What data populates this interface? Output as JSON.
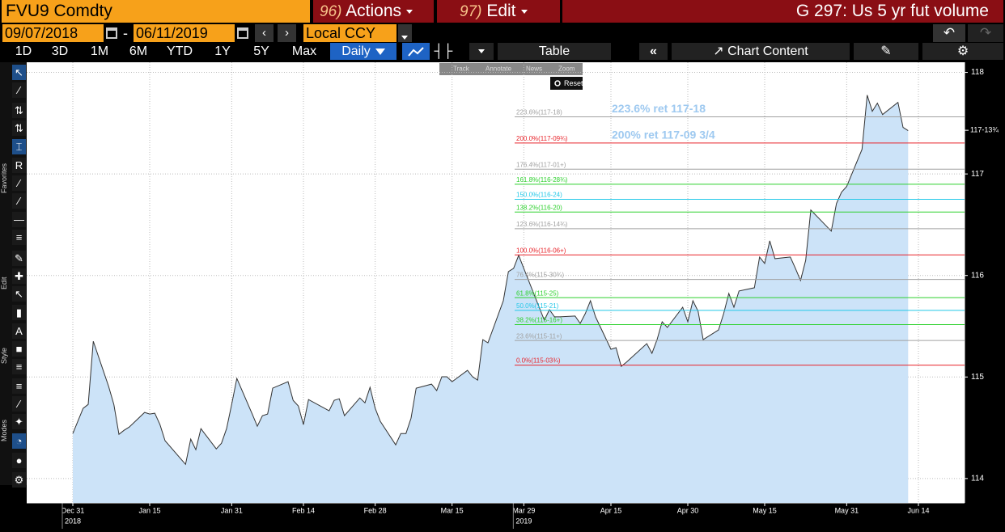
{
  "header": {
    "ticker": "FVU9 Comdty",
    "actions_num": "96)",
    "actions": "Actions",
    "edit_num": "97)",
    "edit": "Edit",
    "title": "G 297: Us 5 yr fut volume"
  },
  "controls": {
    "start_date": "09/07/2018",
    "dash": "-",
    "end_date": "06/11/2019",
    "currency": "Local CCY",
    "periods": [
      "1D",
      "3D",
      "1M",
      "6M",
      "YTD",
      "1Y",
      "5Y",
      "Max"
    ],
    "frequency": "Daily",
    "table": "Table",
    "chart_content": "Chart Content"
  },
  "sidebar": [
    "Favorites",
    "Edit",
    "Style",
    "Modes"
  ],
  "chart_tools": [
    "Track",
    "Annotate",
    "News",
    "Zoom"
  ],
  "reset": "Reset",
  "chart_data": {
    "type": "area",
    "color": "#333333",
    "fill": "#cce3f8",
    "grid": true,
    "x": [
      "2018-12-31",
      "2019-01-02",
      "2019-01-03",
      "2019-01-04",
      "2019-01-07",
      "2019-01-08",
      "2019-01-09",
      "2019-01-10",
      "2019-01-11",
      "2019-01-14",
      "2019-01-15",
      "2019-01-16",
      "2019-01-17",
      "2019-01-18",
      "2019-01-22",
      "2019-01-23",
      "2019-01-24",
      "2019-01-25",
      "2019-01-28",
      "2019-01-29",
      "2019-01-30",
      "2019-01-31",
      "2019-02-01",
      "2019-02-04",
      "2019-02-05",
      "2019-02-06",
      "2019-02-07",
      "2019-02-08",
      "2019-02-11",
      "2019-02-12",
      "2019-02-13",
      "2019-02-14",
      "2019-02-15",
      "2019-02-19",
      "2019-02-20",
      "2019-02-21",
      "2019-02-22",
      "2019-02-25",
      "2019-02-26",
      "2019-02-27",
      "2019-02-28",
      "2019-03-01",
      "2019-03-04",
      "2019-03-05",
      "2019-03-06",
      "2019-03-07",
      "2019-03-08",
      "2019-03-11",
      "2019-03-12",
      "2019-03-13",
      "2019-03-14",
      "2019-03-15",
      "2019-03-18",
      "2019-03-19",
      "2019-03-20",
      "2019-03-21",
      "2019-03-22",
      "2019-03-25",
      "2019-03-26",
      "2019-03-27",
      "2019-03-28",
      "2019-03-29",
      "2019-04-01",
      "2019-04-02",
      "2019-04-03",
      "2019-04-04",
      "2019-04-05",
      "2019-04-08",
      "2019-04-09",
      "2019-04-10",
      "2019-04-11",
      "2019-04-12",
      "2019-04-15",
      "2019-04-16",
      "2019-04-17",
      "2019-04-18",
      "2019-04-22",
      "2019-04-23",
      "2019-04-24",
      "2019-04-25",
      "2019-04-26",
      "2019-04-29",
      "2019-04-30",
      "2019-05-01",
      "2019-05-02",
      "2019-05-03",
      "2019-05-06",
      "2019-05-07",
      "2019-05-08",
      "2019-05-09",
      "2019-05-10",
      "2019-05-13",
      "2019-05-14",
      "2019-05-15",
      "2019-05-16",
      "2019-05-17",
      "2019-05-20",
      "2019-05-21",
      "2019-05-22",
      "2019-05-23",
      "2019-05-24",
      "2019-05-28",
      "2019-05-29",
      "2019-05-30",
      "2019-05-31",
      "2019-06-03",
      "2019-06-04",
      "2019-06-05",
      "2019-06-06",
      "2019-06-07",
      "2019-06-10",
      "2019-06-11",
      "2019-06-12"
    ],
    "values": [
      114.443,
      114.691,
      114.73,
      115.352,
      114.906,
      114.73,
      114.435,
      114.475,
      114.507,
      114.651,
      114.635,
      114.643,
      114.531,
      114.372,
      114.14,
      114.388,
      114.284,
      114.491,
      114.292,
      114.348,
      114.491,
      114.73,
      114.986,
      114.635,
      114.515,
      114.619,
      114.635,
      114.89,
      114.954,
      114.77,
      114.715,
      114.531,
      114.778,
      114.667,
      114.77,
      114.786,
      114.619,
      114.794,
      114.746,
      114.898,
      114.691,
      114.563,
      114.332,
      114.443,
      114.443,
      114.595,
      114.89,
      114.93,
      114.866,
      115.002,
      115.002,
      114.954,
      115.065,
      115.002,
      114.97,
      115.368,
      115.337,
      115.751,
      116.038,
      116.07,
      116.198,
      116.07,
      115.687,
      115.56,
      115.663,
      115.592,
      115.592,
      115.6,
      115.528,
      115.624,
      115.751,
      115.592,
      115.273,
      115.289,
      115.105,
      115.145,
      115.329,
      115.233,
      115.368,
      115.544,
      115.488,
      115.687,
      115.544,
      115.751,
      115.648,
      115.368,
      115.464,
      115.624,
      115.823,
      115.687,
      115.847,
      115.879,
      116.182,
      116.118,
      116.341,
      116.166,
      116.182,
      116.07,
      115.951,
      116.15,
      116.644,
      116.437,
      116.708,
      116.82,
      116.876,
      117.242,
      117.777,
      117.617,
      117.697,
      117.585,
      117.705,
      117.458,
      117.426
    ],
    "xlim": [
      "2018-12-22",
      "2019-06-23"
    ],
    "xticks": [
      {
        "value": "2018-12-31",
        "label": "Dec 31"
      },
      {
        "value": "2019-01-15",
        "label": "Jan 15"
      },
      {
        "value": "2019-01-31",
        "label": "Jan 31"
      },
      {
        "value": "2019-02-14",
        "label": "Feb 14"
      },
      {
        "value": "2019-02-28",
        "label": "Feb 28"
      },
      {
        "value": "2019-03-15",
        "label": "Mar 15"
      },
      {
        "value": "2019-03-29",
        "label": "Mar 29"
      },
      {
        "value": "2019-04-15",
        "label": "Apr 15"
      },
      {
        "value": "2019-04-30",
        "label": "Apr 30"
      },
      {
        "value": "2019-05-15",
        "label": "May 15"
      },
      {
        "value": "2019-05-31",
        "label": "May 31"
      },
      {
        "value": "2019-06-14",
        "label": "Jun 14"
      }
    ],
    "year_labels": [
      {
        "value": "2018-12-31",
        "label": "2018"
      },
      {
        "value": "2019-03-29",
        "label": "2019"
      }
    ],
    "ylim": [
      113.76,
      118.1
    ],
    "yticks": [
      114,
      115,
      116,
      117,
      118
    ],
    "last_price": {
      "value": 117.43,
      "label": "117-13¾"
    },
    "fib_levels": [
      {
        "label": "223.6%(117-18)",
        "value": 117.5625,
        "color": "#a0a0a0"
      },
      {
        "label": "200.0%(117-09¾)",
        "value": 117.3047,
        "color": "#e8232a"
      },
      {
        "label": "176.4%(117-01+)",
        "value": 117.0469,
        "color": "#a0a0a0"
      },
      {
        "label": "161.8%(116-28¾)",
        "value": 116.8984,
        "color": "#2ed12e"
      },
      {
        "label": "150.0%(116-24)",
        "value": 116.75,
        "color": "#22c8e8"
      },
      {
        "label": "138.2%(116-20)",
        "value": 116.625,
        "color": "#2ed12e"
      },
      {
        "label": "123.6%(116-14¾)",
        "value": 116.4609,
        "color": "#a0a0a0"
      },
      {
        "label": "100.0%(116-06+)",
        "value": 116.2031,
        "color": "#e8232a"
      },
      {
        "label": "76.4%(115-30¾)",
        "value": 115.9609,
        "color": "#a0a0a0"
      },
      {
        "label": "61.8%(115-25)",
        "value": 115.7813,
        "color": "#2ed12e"
      },
      {
        "label": "50.0%(115-21)",
        "value": 115.6563,
        "color": "#22c8e8"
      },
      {
        "label": "38.2%(115-16+)",
        "value": 115.5156,
        "color": "#2ed12e"
      },
      {
        "label": "23.6%(115-11+)",
        "value": 115.3594,
        "color": "#a0a0a0"
      },
      {
        "label": "0.0%(115-03¾)",
        "value": 115.1172,
        "color": "#e8232a"
      }
    ],
    "annotations": [
      "223.6% ret 117-18",
      "200% ret 117-09 3/4"
    ],
    "annotation_color": "#9ec9f0"
  }
}
